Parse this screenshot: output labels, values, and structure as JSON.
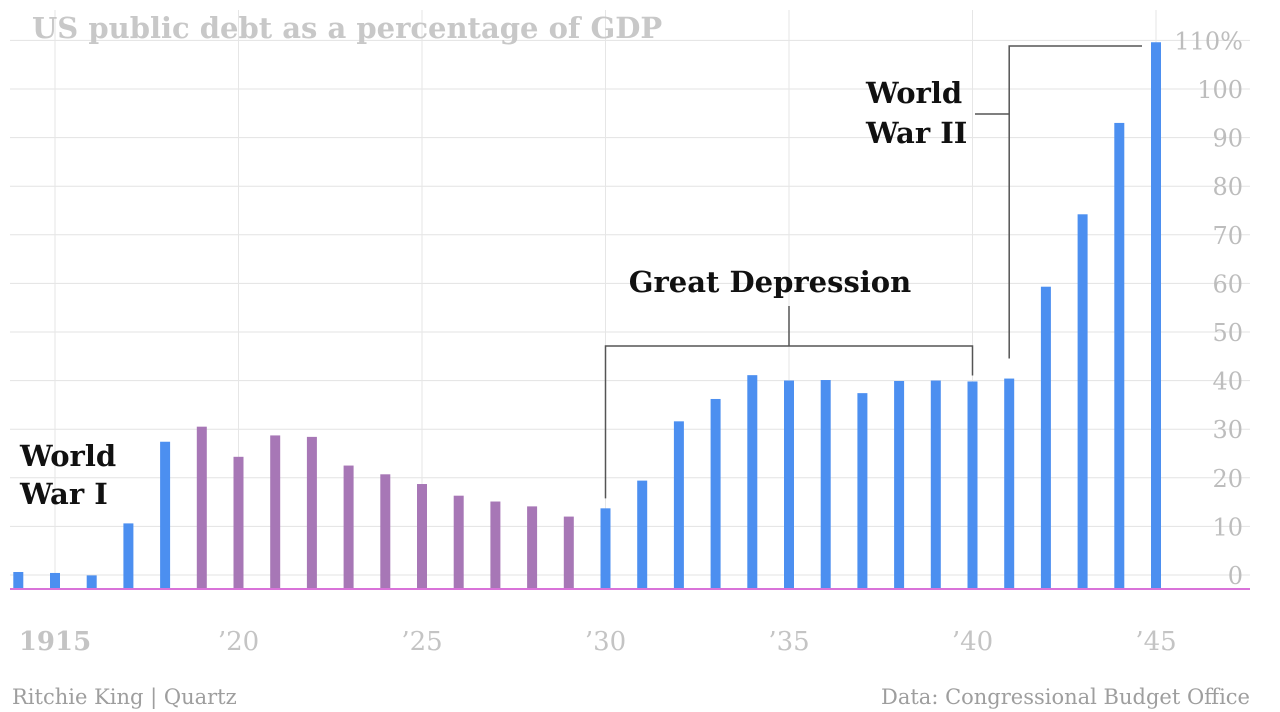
{
  "chart_data": {
    "type": "bar",
    "title": "US public debt as a percentage of GDP",
    "unit": "%",
    "x": [
      1914,
      1915,
      1916,
      1917,
      1918,
      1919,
      1920,
      1921,
      1922,
      1923,
      1924,
      1925,
      1926,
      1927,
      1928,
      1929,
      1930,
      1931,
      1932,
      1933,
      1934,
      1935,
      1936,
      1937,
      1938,
      1939,
      1940,
      1941,
      1942,
      1943,
      1944,
      1945
    ],
    "values": [
      3.5,
      3.3,
      2.8,
      13.5,
      30.3,
      33.4,
      27.2,
      31.6,
      31.3,
      25.4,
      23.6,
      21.6,
      19.2,
      18.0,
      17.0,
      14.9,
      16.6,
      22.3,
      34.5,
      39.1,
      44.0,
      42.9,
      43.0,
      40.3,
      42.8,
      42.9,
      42.7,
      43.3,
      62.2,
      77.1,
      95.9,
      112.5
    ],
    "colors": {
      "default": "#4c8ff0",
      "interwar": "#a777b6",
      "baseline": "#d973d9"
    },
    "interwar_years": [
      1919,
      1929
    ],
    "ylim": [
      -4,
      114
    ],
    "y_ticks": [
      {
        "value": 110,
        "label": "110%"
      },
      {
        "value": 100,
        "label": "100"
      },
      {
        "value": 90,
        "label": "90"
      },
      {
        "value": 80,
        "label": "80"
      },
      {
        "value": 70,
        "label": "70"
      },
      {
        "value": 60,
        "label": "60"
      },
      {
        "value": 50,
        "label": "50"
      },
      {
        "value": 40,
        "label": "40"
      },
      {
        "value": 30,
        "label": "30"
      },
      {
        "value": 20,
        "label": "20"
      },
      {
        "value": 10,
        "label": "10"
      },
      {
        "value": 0,
        "label": "0"
      }
    ],
    "x_ticks": [
      {
        "value": 1915,
        "label": "1915",
        "bold": true
      },
      {
        "value": 1920,
        "label": "’20"
      },
      {
        "value": 1925,
        "label": "’25"
      },
      {
        "value": 1930,
        "label": "’30"
      },
      {
        "value": 1935,
        "label": "’35"
      },
      {
        "value": 1940,
        "label": "’40"
      },
      {
        "value": 1945,
        "label": "’45"
      }
    ],
    "grid": true,
    "annotations": {
      "ww1": {
        "lines": [
          "World",
          "War I"
        ]
      },
      "depression": {
        "label": "Great Depression",
        "from": 1930,
        "to": 1940
      },
      "ww2": {
        "lines": [
          "World",
          "War II"
        ],
        "from": 1941,
        "to": 1945
      }
    },
    "credit": "Ritchie King | Quartz",
    "source": "Data: Congressional Budget Office"
  }
}
